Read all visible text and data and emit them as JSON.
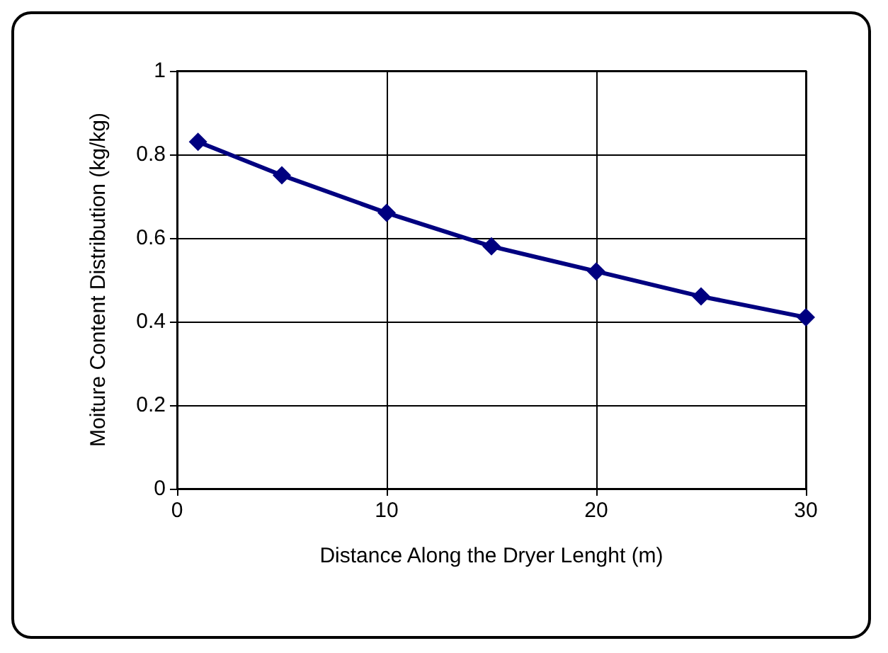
{
  "chart_data": {
    "type": "line",
    "xlabel": "Distance Along the Dryer Lenght (m)",
    "ylabel": "Moiture Content Distribution (kg/kg)",
    "x": [
      1,
      5,
      10,
      15,
      20,
      25,
      30
    ],
    "series": [
      {
        "color": "#000080",
        "values": [
          0.83,
          0.75,
          0.66,
          0.58,
          0.52,
          0.46,
          0.41
        ]
      }
    ],
    "xlim": [
      0,
      30
    ],
    "xticks": [
      0,
      10,
      20,
      30
    ],
    "ylim": [
      0,
      1
    ],
    "yticks": [
      0,
      0.2,
      0.4,
      0.6,
      0.8,
      1
    ],
    "grid": true,
    "marker": "diamond",
    "line_style": "solid"
  }
}
